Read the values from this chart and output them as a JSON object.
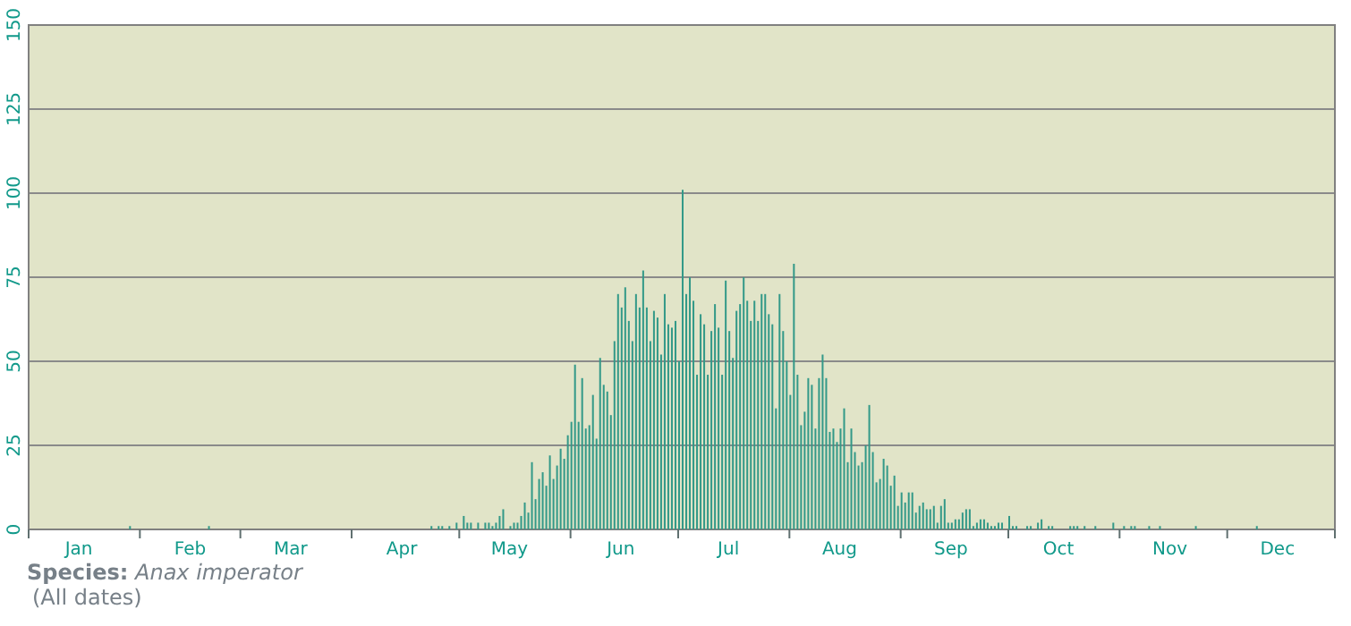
{
  "chart_data": {
    "type": "bar",
    "title": "Species: Anax imperator",
    "subtitle": "(All dates)",
    "x": [
      "--01-29",
      "--02-20",
      "--04-23",
      "--04-25",
      "--04-26",
      "--04-28",
      "--04-30",
      "--05-02",
      "--05-03",
      "--05-04",
      "--05-06",
      "--05-08",
      "--05-09",
      "--05-10",
      "--05-11",
      "--05-12",
      "--05-13",
      "--05-15",
      "--05-16",
      "--05-17",
      "--05-18",
      "--05-19",
      "--05-20",
      "--05-21",
      "--05-22",
      "--05-23",
      "--05-24",
      "--05-25",
      "--05-26",
      "--05-27",
      "--05-28",
      "--05-29",
      "--05-30",
      "--05-31",
      "--06-01",
      "--06-02",
      "--06-03",
      "--06-04",
      "--06-05",
      "--06-06",
      "--06-07",
      "--06-08",
      "--06-09",
      "--06-10",
      "--06-11",
      "--06-12",
      "--06-13",
      "--06-14",
      "--06-15",
      "--06-16",
      "--06-17",
      "--06-18",
      "--06-19",
      "--06-20",
      "--06-21",
      "--06-22",
      "--06-23",
      "--06-24",
      "--06-25",
      "--06-26",
      "--06-27",
      "--06-28",
      "--06-29",
      "--06-30",
      "--07-01",
      "--07-02",
      "--07-03",
      "--07-04",
      "--07-05",
      "--07-06",
      "--07-07",
      "--07-08",
      "--07-09",
      "--07-10",
      "--07-11",
      "--07-12",
      "--07-13",
      "--07-14",
      "--07-15",
      "--07-16",
      "--07-17",
      "--07-18",
      "--07-19",
      "--07-20",
      "--07-21",
      "--07-22",
      "--07-23",
      "--07-24",
      "--07-25",
      "--07-26",
      "--07-27",
      "--07-28",
      "--07-29",
      "--07-30",
      "--07-31",
      "--08-01",
      "--08-02",
      "--08-03",
      "--08-04",
      "--08-05",
      "--08-06",
      "--08-07",
      "--08-08",
      "--08-09",
      "--08-10",
      "--08-11",
      "--08-12",
      "--08-13",
      "--08-14",
      "--08-15",
      "--08-16",
      "--08-17",
      "--08-18",
      "--08-19",
      "--08-20",
      "--08-21",
      "--08-22",
      "--08-23",
      "--08-24",
      "--08-25",
      "--08-26",
      "--08-27",
      "--08-28",
      "--08-29",
      "--08-30",
      "--08-31",
      "--09-01",
      "--09-02",
      "--09-03",
      "--09-04",
      "--09-05",
      "--09-06",
      "--09-07",
      "--09-08",
      "--09-09",
      "--09-10",
      "--09-11",
      "--09-12",
      "--09-13",
      "--09-14",
      "--09-15",
      "--09-16",
      "--09-17",
      "--09-18",
      "--09-19",
      "--09-20",
      "--09-21",
      "--09-22",
      "--09-23",
      "--09-24",
      "--09-25",
      "--09-26",
      "--09-27",
      "--09-28",
      "--09-29",
      "--10-01",
      "--10-02",
      "--10-03",
      "--10-06",
      "--10-07",
      "--10-09",
      "--10-10",
      "--10-12",
      "--10-13",
      "--10-18",
      "--10-19",
      "--10-20",
      "--10-22",
      "--10-25",
      "--10-30",
      "--11-02",
      "--11-04",
      "--11-05",
      "--11-09",
      "--11-12",
      "--11-22",
      "--12-09"
    ],
    "values": [
      1,
      1,
      1,
      1,
      1,
      1,
      2,
      4,
      2,
      2,
      2,
      2,
      2,
      1,
      2,
      4,
      6,
      1,
      2,
      2,
      4,
      8,
      5,
      20,
      9,
      15,
      17,
      13,
      22,
      15,
      19,
      24,
      21,
      28,
      32,
      49,
      32,
      45,
      30,
      31,
      40,
      27,
      51,
      43,
      41,
      34,
      56,
      70,
      66,
      72,
      62,
      56,
      70,
      66,
      77,
      66,
      56,
      65,
      63,
      52,
      70,
      61,
      60,
      62,
      50,
      101,
      70,
      75,
      68,
      46,
      64,
      61,
      46,
      59,
      67,
      60,
      46,
      74,
      59,
      51,
      65,
      67,
      75,
      68,
      62,
      68,
      62,
      70,
      70,
      64,
      61,
      36,
      70,
      59,
      50,
      40,
      79,
      46,
      31,
      35,
      45,
      43,
      30,
      45,
      52,
      45,
      29,
      30,
      26,
      30,
      36,
      20,
      30,
      23,
      19,
      20,
      25,
      37,
      23,
      14,
      15,
      21,
      19,
      13,
      16,
      7,
      11,
      8,
      11,
      11,
      5,
      7,
      8,
      6,
      6,
      7,
      2,
      7,
      9,
      2,
      2,
      3,
      3,
      5,
      6,
      6,
      1,
      2,
      3,
      3,
      2,
      1,
      1,
      2,
      2,
      4,
      1,
      1,
      1,
      1,
      2,
      3,
      1,
      1,
      1,
      1,
      1,
      1,
      1,
      2,
      1,
      1,
      1,
      1,
      1,
      1,
      1
    ],
    "color": "#339988",
    "xlim": [
      "--01-01",
      "--12-31"
    ],
    "xticks": [
      {
        "value": "--01-01",
        "label": null
      },
      {
        "value": "--01-15",
        "label": "Jan"
      },
      {
        "value": "--02-01",
        "label": null
      },
      {
        "value": "--02-15",
        "label": "Feb"
      },
      {
        "value": "--03-01",
        "label": null
      },
      {
        "value": "--03-15",
        "label": "Mar"
      },
      {
        "value": "--04-01",
        "label": null
      },
      {
        "value": "--04-15",
        "label": "Apr"
      },
      {
        "value": "--05-01",
        "label": null
      },
      {
        "value": "--05-15",
        "label": "May"
      },
      {
        "value": "--06-01",
        "label": null
      },
      {
        "value": "--06-15",
        "label": "Jun"
      },
      {
        "value": "--07-01",
        "label": null
      },
      {
        "value": "--07-15",
        "label": "Jul"
      },
      {
        "value": "--08-01",
        "label": null
      },
      {
        "value": "--08-15",
        "label": "Aug"
      },
      {
        "value": "--09-01",
        "label": null
      },
      {
        "value": "--09-15",
        "label": "Sep"
      },
      {
        "value": "--10-01",
        "label": null
      },
      {
        "value": "--10-15",
        "label": "Oct"
      },
      {
        "value": "--11-01",
        "label": null
      },
      {
        "value": "--11-15",
        "label": "Nov"
      },
      {
        "value": "--12-01",
        "label": null
      },
      {
        "value": "--12-15",
        "label": "Dec"
      },
      {
        "value": "--12-31",
        "label": null
      }
    ],
    "ylim": [
      0,
      150
    ],
    "yticks": [
      0,
      25,
      50,
      75,
      100,
      125,
      150
    ],
    "grid": "y"
  }
}
